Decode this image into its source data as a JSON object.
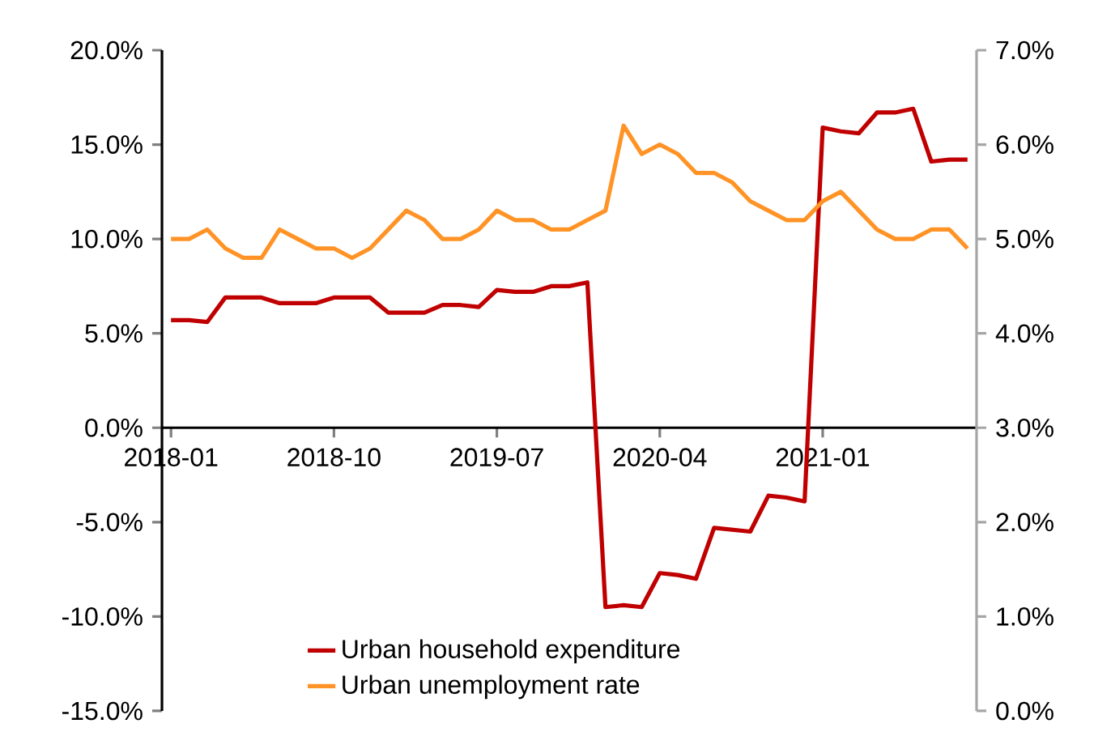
{
  "chart_data": {
    "type": "line",
    "categories": [
      "2018-01",
      null,
      null,
      null,
      null,
      null,
      null,
      null,
      null,
      "2018-10",
      null,
      null,
      null,
      null,
      null,
      null,
      null,
      null,
      "2019-07",
      null,
      null,
      null,
      null,
      null,
      null,
      null,
      null,
      "2020-04",
      null,
      null,
      null,
      null,
      null,
      null,
      null,
      null,
      "2021-01",
      null,
      null,
      null,
      null,
      null,
      null,
      null,
      null
    ],
    "series": [
      {
        "name": "Urban household expenditure",
        "color": "#c00000",
        "values": [
          5.7,
          5.7,
          5.6,
          6.9,
          6.9,
          6.9,
          6.6,
          6.6,
          6.6,
          6.9,
          6.9,
          6.9,
          6.1,
          6.1,
          6.1,
          6.5,
          6.5,
          6.4,
          7.3,
          7.2,
          7.2,
          7.5,
          7.5,
          7.7,
          -9.5,
          -9.4,
          -9.5,
          -7.7,
          -7.8,
          -8.0,
          -5.3,
          -5.4,
          -5.5,
          -3.6,
          -3.7,
          -3.9,
          15.9,
          15.7,
          15.6,
          16.7,
          16.7,
          16.9,
          14.1,
          14.2,
          14.2
        ]
      },
      {
        "name": "Urban unemployment rate",
        "color": "#ff9326",
        "axis": "y2",
        "values": [
          5.0,
          5.0,
          5.1,
          4.9,
          4.8,
          4.8,
          5.1,
          5.0,
          4.9,
          4.9,
          4.8,
          4.9,
          5.1,
          5.3,
          5.2,
          5.0,
          5.0,
          5.1,
          5.3,
          5.2,
          5.2,
          5.1,
          5.1,
          5.2,
          5.3,
          6.2,
          5.9,
          6.0,
          5.9,
          5.7,
          5.7,
          5.6,
          5.4,
          5.3,
          5.2,
          5.2,
          5.4,
          5.5,
          5.3,
          5.1,
          5.0,
          5.0,
          5.1,
          5.1,
          4.9
        ]
      }
    ],
    "ylim": [
      -15,
      20
    ],
    "yticks": [
      {
        "value": -15,
        "label": "-15.0%"
      },
      {
        "value": -10,
        "label": "-10.0%"
      },
      {
        "value": -5,
        "label": "-5.0%"
      },
      {
        "value": 0,
        "label": "0.0%"
      },
      {
        "value": 5,
        "label": "5.0%"
      },
      {
        "value": 10,
        "label": "10.0%"
      },
      {
        "value": 15,
        "label": "15.0%"
      },
      {
        "value": 20,
        "label": "20.0%"
      }
    ],
    "y2lim": [
      0,
      7
    ],
    "y2ticks": [
      {
        "value": 0,
        "label": "0.0%"
      },
      {
        "value": 1,
        "label": "1.0%"
      },
      {
        "value": 2,
        "label": "2.0%"
      },
      {
        "value": 3,
        "label": "3.0%"
      },
      {
        "value": 4,
        "label": "4.0%"
      },
      {
        "value": 5,
        "label": "5.0%"
      },
      {
        "value": 6,
        "label": "6.0%"
      },
      {
        "value": 7,
        "label": "7.0%"
      }
    ],
    "legend": "bottom",
    "grid": false
  }
}
